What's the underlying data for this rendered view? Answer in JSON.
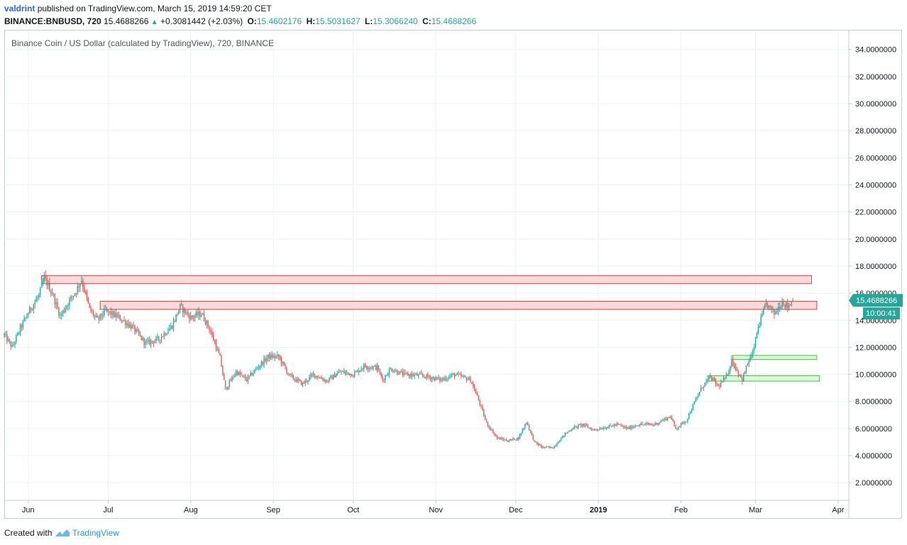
{
  "header": {
    "author": "valdrint",
    "published_text": "published on TradingView.com, March 15, 2019 14:59:20 CET",
    "symbol": "BINANCE:BNBUSD, 720",
    "last": "15.4688266",
    "change_icon": "triangle-up-icon",
    "change": "+0.3081442 (+2.03%)",
    "o_label": "O:",
    "o_value": "15.4602176",
    "h_label": "H:",
    "h_value": "15.5031627",
    "l_label": "L:",
    "l_value": "15.3066240",
    "c_label": "C:",
    "c_value": "15.4688266"
  },
  "footer": {
    "created_with": "Created with",
    "logo_icon": "tradingview-logo-icon",
    "brand": "TradingView"
  },
  "colors": {
    "up": "#26a69a",
    "down": "#ef5350",
    "resistance_fill": "#f9d4d4",
    "resistance_stroke": "#e53935",
    "support_fill": "#d6f5d6",
    "support_stroke": "#43c943",
    "grid": "#eef1f5",
    "price_tag": "#26a69a",
    "accent": "#2962ff"
  },
  "chart_data": {
    "type": "candlestick",
    "title": "Binance Coin / US Dollar (calculated by TradingView), 720, BINANCE",
    "interval": "720",
    "xlabel": "",
    "ylabel": "",
    "x_ticks": [
      {
        "label": "Jun",
        "date": "2018-06-01"
      },
      {
        "label": "Jul",
        "date": "2018-07-01"
      },
      {
        "label": "Aug",
        "date": "2018-08-01"
      },
      {
        "label": "Sep",
        "date": "2018-09-01"
      },
      {
        "label": "Oct",
        "date": "2018-10-01"
      },
      {
        "label": "Nov",
        "date": "2018-11-01"
      },
      {
        "label": "Dec",
        "date": "2018-12-01"
      },
      {
        "label": "2019",
        "date": "2019-01-01"
      },
      {
        "label": "Feb",
        "date": "2019-02-01"
      },
      {
        "label": "Mar",
        "date": "2019-03-01"
      },
      {
        "label": "Apr",
        "date": "2019-04-01"
      }
    ],
    "xlim": [
      "2018-05-23",
      "2019-04-05"
    ],
    "y_ticks": [
      "2.0000000",
      "4.0000000",
      "6.0000000",
      "8.0000000",
      "10.0000000",
      "12.0000000",
      "14.0000000",
      "16.0000000",
      "18.0000000",
      "20.0000000",
      "22.0000000",
      "24.0000000",
      "26.0000000",
      "28.0000000",
      "30.0000000",
      "32.0000000",
      "34.0000000"
    ],
    "ylim": [
      0.7,
      35.4
    ],
    "grid": true,
    "last_price_label": "15.4688266",
    "countdown_label": "10:00:41",
    "close_path": [
      [
        "2018-05-23",
        12.9
      ],
      [
        "2018-05-26",
        12.0
      ],
      [
        "2018-05-29",
        13.4
      ],
      [
        "2018-06-02",
        14.9
      ],
      [
        "2018-06-05",
        15.8
      ],
      [
        "2018-06-07",
        17.1
      ],
      [
        "2018-06-10",
        16.0
      ],
      [
        "2018-06-13",
        14.3
      ],
      [
        "2018-06-16",
        15.3
      ],
      [
        "2018-06-19",
        16.2
      ],
      [
        "2018-06-21",
        17.0
      ],
      [
        "2018-06-24",
        14.8
      ],
      [
        "2018-06-27",
        14.0
      ],
      [
        "2018-06-30",
        14.7
      ],
      [
        "2018-07-05",
        14.2
      ],
      [
        "2018-07-10",
        13.5
      ],
      [
        "2018-07-15",
        12.3
      ],
      [
        "2018-07-20",
        12.6
      ],
      [
        "2018-07-25",
        13.6
      ],
      [
        "2018-07-28",
        15.0
      ],
      [
        "2018-08-01",
        14.2
      ],
      [
        "2018-08-05",
        14.5
      ],
      [
        "2018-08-08",
        13.4
      ],
      [
        "2018-08-12",
        11.2
      ],
      [
        "2018-08-14",
        8.9
      ],
      [
        "2018-08-18",
        10.2
      ],
      [
        "2018-08-22",
        9.6
      ],
      [
        "2018-08-26",
        10.5
      ],
      [
        "2018-08-30",
        11.3
      ],
      [
        "2018-09-03",
        11.3
      ],
      [
        "2018-09-07",
        9.9
      ],
      [
        "2018-09-12",
        9.3
      ],
      [
        "2018-09-16",
        10.0
      ],
      [
        "2018-09-21",
        9.5
      ],
      [
        "2018-09-26",
        10.2
      ],
      [
        "2018-10-01",
        10.0
      ],
      [
        "2018-10-05",
        10.6
      ],
      [
        "2018-10-10",
        10.5
      ],
      [
        "2018-10-12",
        9.6
      ],
      [
        "2018-10-15",
        10.4
      ],
      [
        "2018-10-20",
        10.0
      ],
      [
        "2018-10-27",
        9.9
      ],
      [
        "2018-11-03",
        9.6
      ],
      [
        "2018-11-08",
        10.0
      ],
      [
        "2018-11-14",
        9.6
      ],
      [
        "2018-11-17",
        8.1
      ],
      [
        "2018-11-20",
        6.4
      ],
      [
        "2018-11-24",
        5.3
      ],
      [
        "2018-11-28",
        5.1
      ],
      [
        "2018-12-02",
        5.3
      ],
      [
        "2018-12-05",
        6.5
      ],
      [
        "2018-12-08",
        5.0
      ],
      [
        "2018-12-11",
        4.6
      ],
      [
        "2018-12-15",
        4.6
      ],
      [
        "2018-12-19",
        5.5
      ],
      [
        "2018-12-22",
        6.0
      ],
      [
        "2018-12-26",
        6.3
      ],
      [
        "2018-12-30",
        5.9
      ],
      [
        "2019-01-04",
        6.1
      ],
      [
        "2019-01-08",
        6.3
      ],
      [
        "2019-01-12",
        6.0
      ],
      [
        "2019-01-16",
        6.3
      ],
      [
        "2019-01-22",
        6.3
      ],
      [
        "2019-01-28",
        6.9
      ],
      [
        "2019-01-30",
        6.0
      ],
      [
        "2019-02-03",
        6.6
      ],
      [
        "2019-02-06",
        7.9
      ],
      [
        "2019-02-09",
        9.1
      ],
      [
        "2019-02-12",
        9.8
      ],
      [
        "2019-02-15",
        9.1
      ],
      [
        "2019-02-18",
        9.8
      ],
      [
        "2019-02-20",
        11.0
      ],
      [
        "2019-02-24",
        9.6
      ],
      [
        "2019-02-26",
        10.8
      ],
      [
        "2019-02-28",
        11.6
      ],
      [
        "2019-03-02",
        13.5
      ],
      [
        "2019-03-05",
        15.2
      ],
      [
        "2019-03-08",
        14.5
      ],
      [
        "2019-03-11",
        15.4
      ],
      [
        "2019-03-13",
        15.0
      ],
      [
        "2019-03-15",
        15.47
      ]
    ],
    "zones": [
      {
        "kind": "resistance",
        "from": "2018-06-06",
        "to": "2019-03-22",
        "low": 16.7,
        "high": 17.3
      },
      {
        "kind": "resistance",
        "from": "2018-06-28",
        "to": "2019-03-24",
        "low": 14.8,
        "high": 15.4
      },
      {
        "kind": "support",
        "from": "2019-02-20",
        "to": "2019-03-24",
        "low": 11.1,
        "high": 11.4
      },
      {
        "kind": "support",
        "from": "2019-02-11",
        "to": "2019-03-25",
        "low": 9.5,
        "high": 9.9
      }
    ]
  }
}
